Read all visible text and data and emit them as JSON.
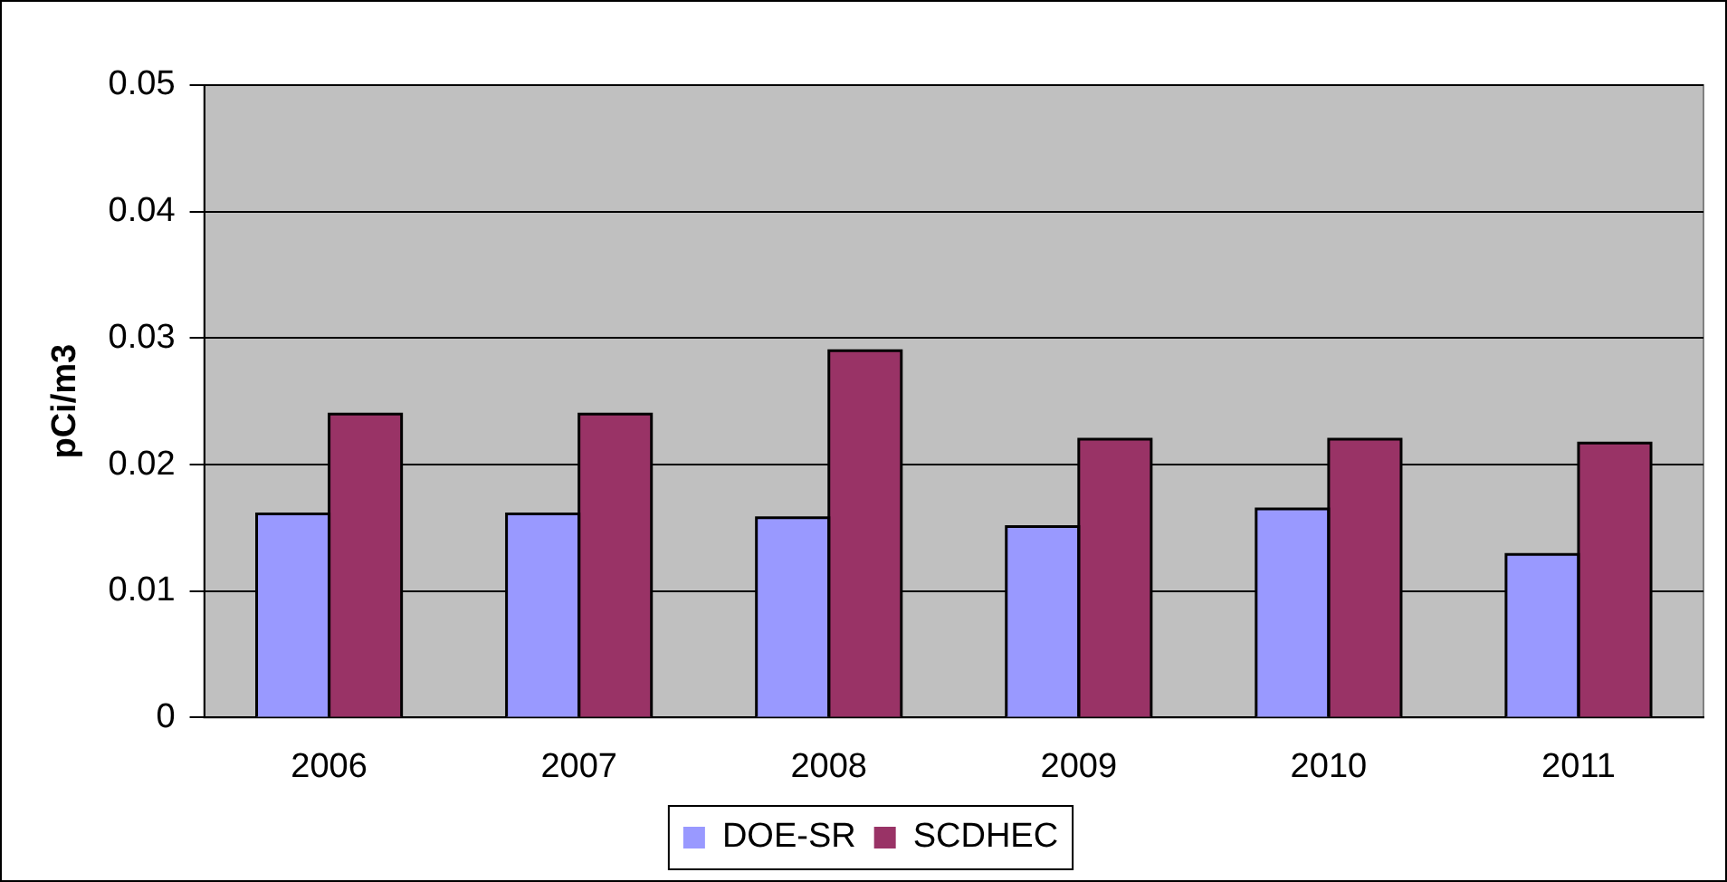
{
  "chart_data": {
    "type": "bar",
    "ylabel": "pCi/m3",
    "categories": [
      "2006",
      "2007",
      "2008",
      "2009",
      "2010",
      "2011"
    ],
    "series": [
      {
        "name": "DOE-SR",
        "color": "#9999ff",
        "values": [
          0.0161,
          0.0161,
          0.0158,
          0.0151,
          0.0165,
          0.0129
        ]
      },
      {
        "name": "SCDHEC",
        "color": "#993366",
        "values": [
          0.024,
          0.024,
          0.029,
          0.022,
          0.022,
          0.0217
        ]
      }
    ],
    "ylim": [
      0,
      0.05
    ],
    "yticks": [
      0,
      0.01,
      0.02,
      0.03,
      0.04,
      0.05
    ],
    "grid": "y",
    "legend": "bottom"
  }
}
